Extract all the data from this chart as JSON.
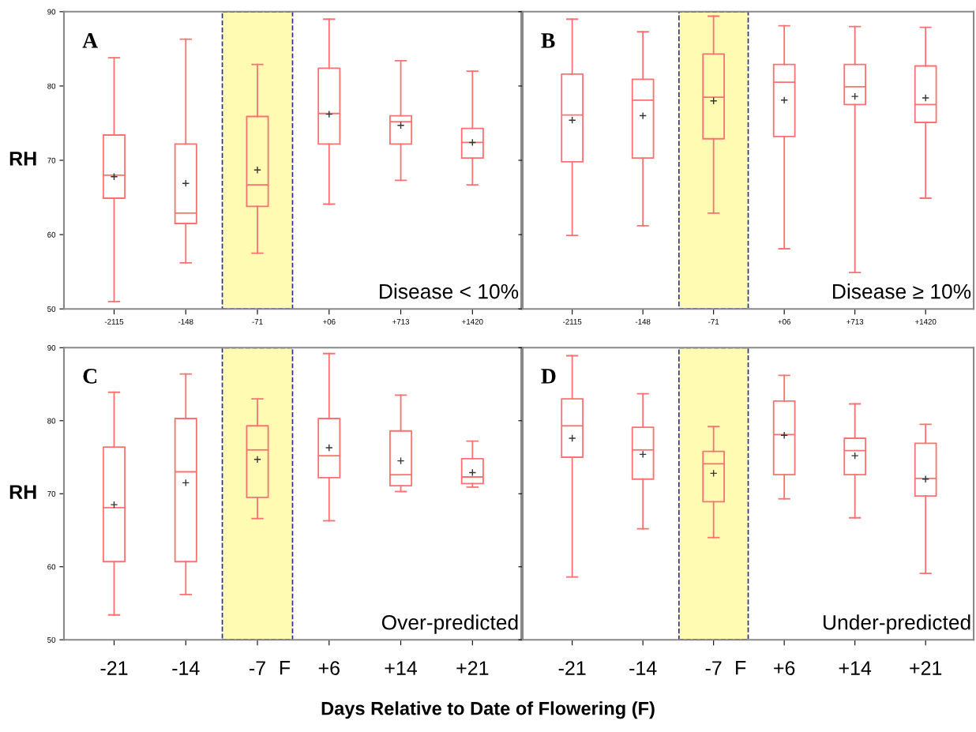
{
  "chart_data": [
    {
      "type": "box",
      "title": "A",
      "subtitle": "Disease < 10%",
      "ylabel": "RH",
      "categories": [
        "-2115",
        "-148",
        "-71",
        "+06",
        "+713",
        "+1420"
      ],
      "ylim": [
        50,
        90
      ],
      "yticks": [
        50,
        60,
        70,
        80,
        90
      ],
      "grid": false,
      "marker": "cross",
      "bands": [
        {
          "axis": "x",
          "from": "-71",
          "to": "-71",
          "color": "#fffbb3"
        }
      ],
      "series": [
        {
          "color": "#ff7070",
          "boxes": [
            {
              "low": 51.0,
              "q1": 64.9,
              "median": 68.0,
              "q3": 73.4,
              "high": 83.8,
              "mean": 67.8
            },
            {
              "low": 56.2,
              "q1": 61.5,
              "median": 62.9,
              "q3": 72.2,
              "high": 86.3,
              "mean": 66.9
            },
            {
              "low": 57.5,
              "q1": 63.8,
              "median": 66.7,
              "q3": 75.9,
              "high": 82.9,
              "mean": 68.7
            },
            {
              "low": 64.1,
              "q1": 72.2,
              "median": 76.3,
              "q3": 82.4,
              "high": 89.0,
              "mean": 76.2
            },
            {
              "low": 67.3,
              "q1": 72.2,
              "median": 75.2,
              "q3": 76.0,
              "high": 83.4,
              "mean": 74.7
            },
            {
              "low": 66.7,
              "q1": 70.3,
              "median": 72.4,
              "q3": 74.3,
              "high": 82.0,
              "mean": 72.4
            }
          ]
        }
      ]
    },
    {
      "type": "box",
      "title": "B",
      "subtitle": "Disease ≥ 10%",
      "categories": [
        "-2115",
        "-148",
        "-71",
        "+06",
        "+713",
        "+1420"
      ],
      "ylim": [
        50,
        90
      ],
      "yticks": [
        {
          "value": 50,
          "label": null
        },
        {
          "value": 60,
          "label": null
        },
        {
          "value": 70,
          "label": null
        },
        {
          "value": 80,
          "label": null
        },
        {
          "value": 90,
          "label": null
        }
      ],
      "tick_labels": "x",
      "grid": false,
      "marker": "cross",
      "bands": [
        {
          "axis": "x",
          "from": "-71",
          "to": "-71",
          "color": "#fffbb3"
        }
      ],
      "series": [
        {
          "color": "#ff7070",
          "boxes": [
            {
              "low": 59.9,
              "q1": 69.8,
              "median": 76.1,
              "q3": 81.6,
              "high": 89.0,
              "mean": 75.4
            },
            {
              "low": 61.2,
              "q1": 70.3,
              "median": 78.1,
              "q3": 80.9,
              "high": 87.3,
              "mean": 76.0
            },
            {
              "low": 62.9,
              "q1": 72.9,
              "median": 78.5,
              "q3": 84.3,
              "high": 89.4,
              "mean": 78.0
            },
            {
              "low": 58.1,
              "q1": 73.2,
              "median": 80.5,
              "q3": 82.9,
              "high": 88.1,
              "mean": 78.1
            },
            {
              "low": 54.9,
              "q1": 77.5,
              "median": 79.9,
              "q3": 82.9,
              "high": 88.0,
              "mean": 78.6
            },
            {
              "low": 64.9,
              "q1": 75.1,
              "median": 77.5,
              "q3": 82.7,
              "high": 87.9,
              "mean": 78.4
            }
          ]
        }
      ]
    },
    {
      "type": "box",
      "title": "C",
      "subtitle": "Over-predicted",
      "ylabel": "RH",
      "xlabel": "Days Relative to Date of Flowering (F)",
      "annotations": [
        "F"
      ],
      "categories": [
        "-21",
        "-14",
        "-7",
        "+6",
        "+14",
        "+21"
      ],
      "ylim": [
        50,
        90
      ],
      "yticks": [
        50,
        60,
        70,
        80,
        90
      ],
      "grid": false,
      "marker": "cross",
      "bands": [
        {
          "axis": "x",
          "from": "-7",
          "to": "-7",
          "color": "#fffbb3"
        }
      ],
      "series": [
        {
          "color": "#ff7070",
          "boxes": [
            {
              "low": 53.4,
              "q1": 60.7,
              "median": 68.1,
              "q3": 76.4,
              "high": 83.9,
              "mean": 68.5
            },
            {
              "low": 56.2,
              "q1": 60.7,
              "median": 73.0,
              "q3": 80.3,
              "high": 86.4,
              "mean": 71.5
            },
            {
              "low": 66.6,
              "q1": 69.5,
              "median": 76.0,
              "q3": 79.3,
              "high": 83.0,
              "mean": 74.7
            },
            {
              "low": 66.3,
              "q1": 72.2,
              "median": 75.2,
              "q3": 80.3,
              "high": 89.2,
              "mean": 76.3
            },
            {
              "low": 70.3,
              "q1": 71.1,
              "median": 72.6,
              "q3": 78.6,
              "high": 83.5,
              "mean": 74.5
            },
            {
              "low": 70.9,
              "q1": 71.4,
              "median": 72.3,
              "q3": 74.8,
              "high": 77.2,
              "mean": 72.9
            }
          ]
        }
      ]
    },
    {
      "type": "box",
      "title": "D",
      "subtitle": "Under-predicted",
      "annotations": [
        "F"
      ],
      "categories": [
        "-21",
        "-14",
        "-7",
        "+6",
        "+14",
        "+21"
      ],
      "ylim": [
        50,
        90
      ],
      "yticks": [
        {
          "value": 50,
          "label": null
        },
        {
          "value": 60,
          "label": null
        },
        {
          "value": 70,
          "label": null
        },
        {
          "value": 80,
          "label": null
        },
        {
          "value": 90,
          "label": null
        }
      ],
      "tick_labels": "x",
      "grid": false,
      "marker": "cross",
      "bands": [
        {
          "axis": "x",
          "from": "-7",
          "to": "-7",
          "color": "#fffbb3"
        }
      ],
      "series": [
        {
          "color": "#ff7070",
          "boxes": [
            {
              "low": 58.6,
              "q1": 75.0,
              "median": 79.3,
              "q3": 83.0,
              "high": 88.9,
              "mean": 77.6
            },
            {
              "low": 65.2,
              "q1": 72.0,
              "median": 76.0,
              "q3": 79.1,
              "high": 83.7,
              "mean": 75.4
            },
            {
              "low": 64.0,
              "q1": 68.9,
              "median": 74.1,
              "q3": 75.8,
              "high": 79.2,
              "mean": 72.8
            },
            {
              "low": 69.3,
              "q1": 72.6,
              "median": 78.1,
              "q3": 82.7,
              "high": 86.2,
              "mean": 78.0
            },
            {
              "low": 66.7,
              "q1": 72.6,
              "median": 75.9,
              "q3": 77.6,
              "high": 82.3,
              "mean": 75.2
            },
            {
              "low": 59.1,
              "q1": 69.7,
              "median": 72.1,
              "q3": 76.9,
              "high": 79.5,
              "mean": 72.0
            }
          ]
        }
      ]
    }
  ]
}
